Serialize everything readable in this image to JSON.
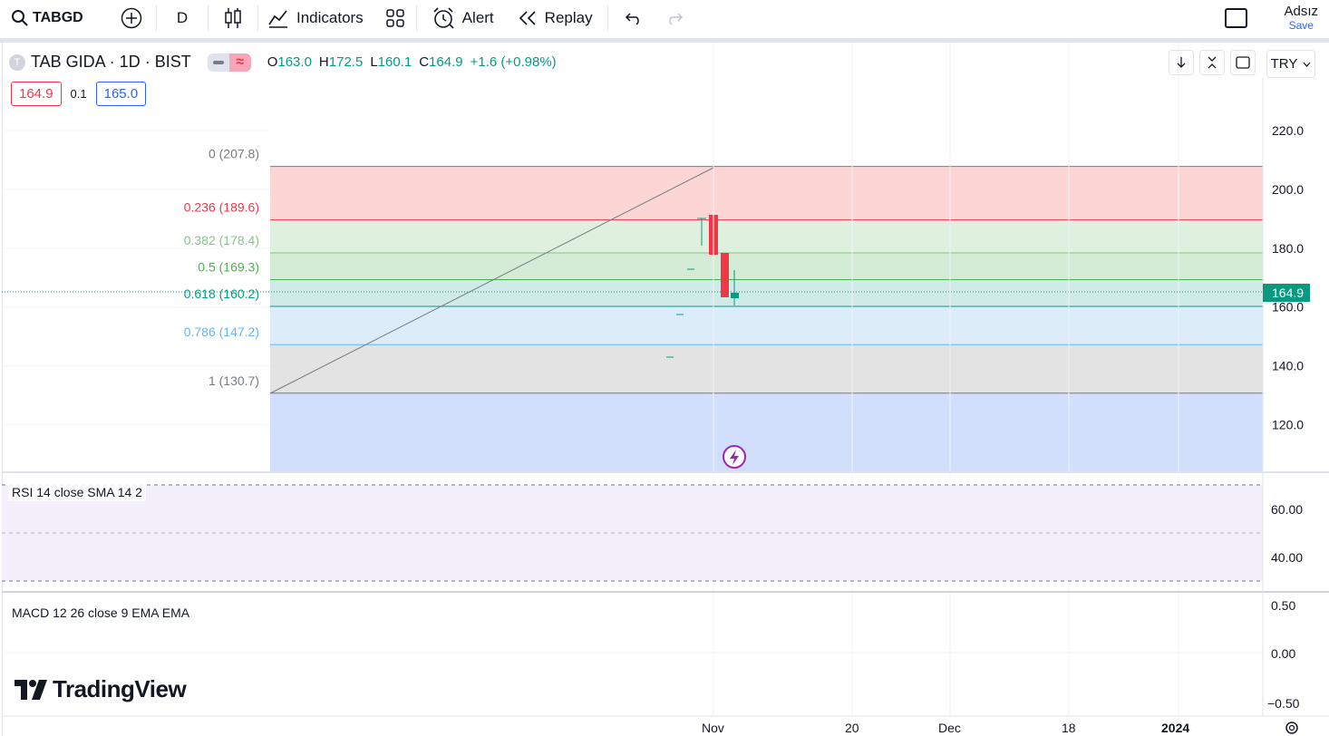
{
  "toolbar": {
    "symbol": "TABGD",
    "interval": "D",
    "indicators_label": "Indicators",
    "alert_label": "Alert",
    "replay_label": "Replay",
    "user_name": "Adsız",
    "save_label": "Save"
  },
  "legend": {
    "logo_letter": "T",
    "title": "TAB GIDA · 1D · BIST",
    "ohlc": [
      {
        "k": "O",
        "v": "163.0"
      },
      {
        "k": "H",
        "v": "172.5"
      },
      {
        "k": "L",
        "v": "160.1"
      },
      {
        "k": "C",
        "v": "164.9"
      },
      {
        "k": "",
        "v": "+1.6 (+0.98%)"
      }
    ],
    "bid": "164.9",
    "spread": "0.1",
    "ask": "165.0"
  },
  "currency": "TRY",
  "price_axis": {
    "ticks": [
      "220.0",
      "200.0",
      "180.0",
      "160.0",
      "140.0",
      "120.0"
    ],
    "last_price": "164.9"
  },
  "fib_levels": [
    {
      "label": "0 (207.8)",
      "price": 207.8,
      "color": "#787b86",
      "fill": "#fcd5d5"
    },
    {
      "label": "0.236 (189.6)",
      "price": 189.6,
      "color": "#f23645",
      "fill": "#e0f0de"
    },
    {
      "label": "0.382 (178.4)",
      "price": 178.4,
      "color": "#81c784",
      "fill": "#d4ebd5"
    },
    {
      "label": "0.5 (169.3)",
      "price": 169.3,
      "color": "#4caf50",
      "fill": "#d0eae8"
    },
    {
      "label": "0.618 (160.2)",
      "price": 160.2,
      "color": "#089981",
      "fill": "#dcecf9"
    },
    {
      "label": "0.786 (147.2)",
      "price": 147.2,
      "color": "#64b5f6",
      "fill": "#e3e3e3"
    },
    {
      "label": "1 (130.7)",
      "price": 130.7,
      "color": "#787b86",
      "fill": "#d2dffc"
    }
  ],
  "rsi": {
    "label": "RSI 14 close SMA 14 2",
    "ticks": [
      "60.00",
      "40.00"
    ]
  },
  "macd": {
    "label": "MACD 12 26 close 9 EMA EMA",
    "ticks": [
      "0.50",
      "0.00",
      "−0.50"
    ]
  },
  "time_axis": [
    "Nov",
    "20",
    "Dec",
    "18",
    "2024"
  ],
  "brand": "TradingView",
  "colors": {
    "up": "#089981",
    "down": "#f23645",
    "accent": "#2962ff"
  }
}
